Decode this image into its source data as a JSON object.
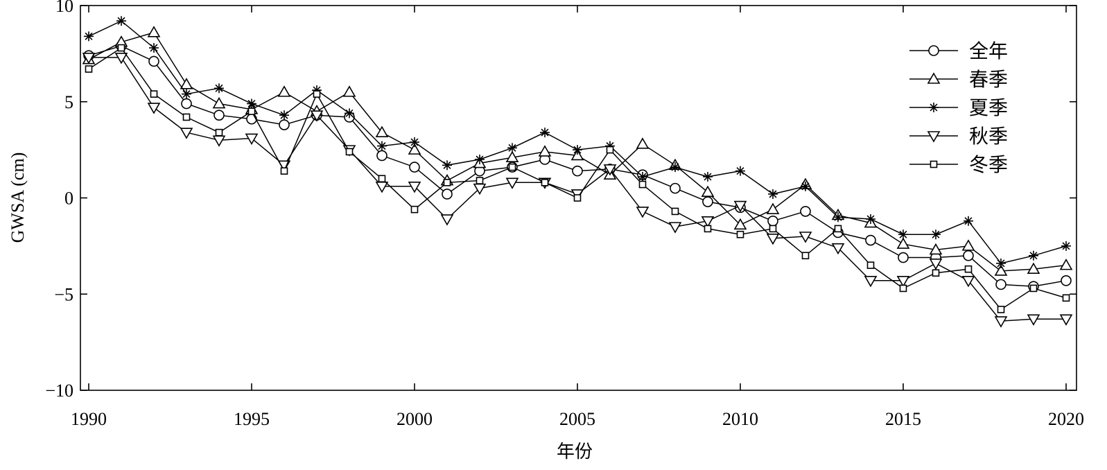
{
  "chart_data": {
    "type": "line",
    "title": "",
    "xlabel": "年份",
    "ylabel": "GWSA (cm)",
    "xlim": [
      1990,
      2020
    ],
    "ylim": [
      -10,
      10
    ],
    "xticks": [
      "1990",
      "1995",
      "2000",
      "2005",
      "2010",
      "2015",
      "2020"
    ],
    "yticks": [
      "−10",
      "−5",
      "0",
      "5",
      "10"
    ],
    "grid": false,
    "legend_position": "top-right",
    "x": [
      1990,
      1991,
      1992,
      1993,
      1994,
      1995,
      1996,
      1997,
      1998,
      1999,
      2000,
      2001,
      2002,
      2003,
      2004,
      2005,
      2006,
      2007,
      2008,
      2009,
      2010,
      2011,
      2012,
      2013,
      2014,
      2015,
      2016,
      2017,
      2018,
      2019,
      2020
    ],
    "series": [
      {
        "name": "全年",
        "marker": "circle",
        "values": [
          7.4,
          7.9,
          7.1,
          4.9,
          4.3,
          4.1,
          3.8,
          4.3,
          4.2,
          2.2,
          1.6,
          0.2,
          1.4,
          1.6,
          2.0,
          1.4,
          1.5,
          1.2,
          0.5,
          -0.2,
          -0.5,
          -1.2,
          -0.7,
          -1.8,
          -2.2,
          -3.1,
          -3.1,
          -3.0,
          -4.5,
          -4.6,
          -4.3
        ]
      },
      {
        "name": "春季",
        "marker": "triangle-up",
        "values": [
          7.2,
          8.1,
          8.6,
          5.9,
          4.9,
          4.6,
          5.5,
          4.5,
          5.5,
          3.4,
          2.5,
          0.9,
          1.8,
          2.1,
          2.4,
          2.2,
          1.2,
          2.8,
          1.7,
          0.3,
          -1.4,
          -0.6,
          0.7,
          -0.9,
          -1.3,
          -2.4,
          -2.7,
          -2.5,
          -3.8,
          -3.7,
          -3.5
        ]
      },
      {
        "name": "夏季",
        "marker": "star",
        "values": [
          8.4,
          9.2,
          7.8,
          5.4,
          5.7,
          4.9,
          4.3,
          5.6,
          4.4,
          2.7,
          2.9,
          1.7,
          2.0,
          2.6,
          3.4,
          2.5,
          2.7,
          1.1,
          1.6,
          1.1,
          1.4,
          0.2,
          0.6,
          -1.0,
          -1.1,
          -1.9,
          -1.9,
          -1.2,
          -3.4,
          -3.0,
          -2.5
        ]
      },
      {
        "name": "秋季",
        "marker": "triangle-down",
        "values": [
          7.3,
          7.3,
          4.7,
          3.4,
          3.0,
          3.1,
          1.7,
          4.3,
          2.5,
          0.6,
          0.6,
          -1.1,
          0.5,
          0.8,
          0.8,
          0.2,
          1.5,
          -0.7,
          -1.5,
          -1.2,
          -0.4,
          -2.1,
          -2.0,
          -2.6,
          -4.3,
          -4.3,
          -3.4,
          -4.3,
          -6.4,
          -6.3,
          -6.3
        ]
      },
      {
        "name": "冬季",
        "marker": "square",
        "values": [
          6.7,
          7.8,
          5.4,
          4.2,
          3.4,
          4.5,
          1.4,
          5.4,
          2.4,
          1.0,
          -0.6,
          0.8,
          0.9,
          1.6,
          0.8,
          0.0,
          2.5,
          0.7,
          -0.7,
          -1.6,
          -1.9,
          -1.6,
          -3.0,
          -1.6,
          -3.5,
          -4.7,
          -3.9,
          -3.7,
          -5.8,
          -4.7,
          -5.2
        ]
      }
    ]
  }
}
